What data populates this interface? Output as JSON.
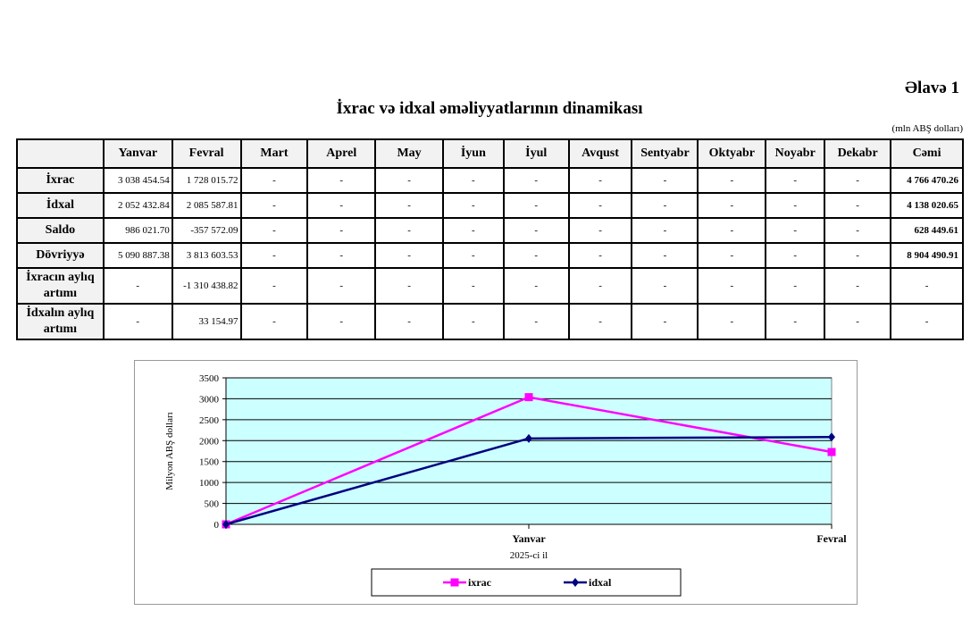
{
  "annex": "Əlavə 1",
  "title": "İxrac və idxal əməliyyatlarının dinamikası",
  "unit": "(mln ABŞ dolları)",
  "table": {
    "columns": [
      "",
      "Yanvar",
      "Fevral",
      "Mart",
      "Aprel",
      "May",
      "İyun",
      "İyul",
      "Avqust",
      "Sentyabr",
      "Oktyabr",
      "Noyabr",
      "Dekabr",
      "Cəmi"
    ],
    "rows": [
      {
        "label": "İxrac",
        "cells": [
          "3 038 454.54",
          "1 728 015.72",
          "-",
          "-",
          "-",
          "-",
          "-",
          "-",
          "-",
          "-",
          "-",
          "-"
        ],
        "total": "4 766 470.26"
      },
      {
        "label": "İdxal",
        "cells": [
          "2 052 432.84",
          "2 085 587.81",
          "-",
          "-",
          "-",
          "-",
          "-",
          "-",
          "-",
          "-",
          "-",
          "-"
        ],
        "total": "4 138 020.65"
      },
      {
        "label": "Saldo",
        "cells": [
          "986 021.70",
          "-357 572.09",
          "-",
          "-",
          "-",
          "-",
          "-",
          "-",
          "-",
          "-",
          "-",
          "-"
        ],
        "total": "628 449.61"
      },
      {
        "label": "Dövriyyə",
        "cells": [
          "5 090 887.38",
          "3 813 603.53",
          "-",
          "-",
          "-",
          "-",
          "-",
          "-",
          "-",
          "-",
          "-",
          "-"
        ],
        "total": "8 904 490.91"
      },
      {
        "label": "İxracın aylıq artımı",
        "cells": [
          "-",
          "-1 310 438.82",
          "-",
          "-",
          "-",
          "-",
          "-",
          "-",
          "-",
          "-",
          "-",
          "-"
        ],
        "total": "-"
      },
      {
        "label": "İdxalın aylıq artımı",
        "cells": [
          "-",
          "33 154.97",
          "-",
          "-",
          "-",
          "-",
          "-",
          "-",
          "-",
          "-",
          "-",
          "-"
        ],
        "total": "-"
      }
    ]
  },
  "chart_data": {
    "type": "line",
    "categories": [
      "",
      "Yanvar",
      "Fevral"
    ],
    "xlabel": "2025-ci il",
    "ylabel": "Milyon ABŞ dolları",
    "ylim": [
      0,
      3500
    ],
    "yticks": [
      0,
      500,
      1000,
      1500,
      2000,
      2500,
      3000,
      3500
    ],
    "grid": true,
    "legend": "bottom",
    "plot_bg": "#ccffff",
    "series": [
      {
        "name": "ixrac",
        "values": [
          0,
          3038.45,
          1728.02
        ],
        "color": "#ff00ff",
        "marker": "square"
      },
      {
        "name": "idxal",
        "values": [
          0,
          2052.43,
          2085.59
        ],
        "color": "#000080",
        "marker": "diamond"
      }
    ]
  }
}
